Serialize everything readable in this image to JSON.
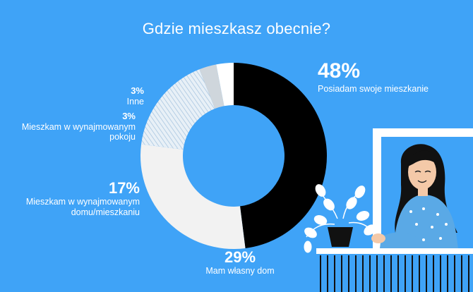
{
  "chart_data": {
    "type": "pie",
    "title": "Gdzie mieszkasz obecnie?",
    "slices": [
      {
        "label": "Posiadam swoje mieszkanie",
        "percent_label": "48%",
        "value": 48,
        "color": "#000000",
        "pattern": "solid"
      },
      {
        "label": "Mam własny dom",
        "percent_label": "29%",
        "value": 29,
        "color": "#f2f2f2",
        "pattern": "solid"
      },
      {
        "label": "Mieszkam w wynajmowanym domu/mieszkaniu",
        "label_line1": "Mieszkam w wynajmowanym",
        "label_line2": "domu/mieszkaniu",
        "percent_label": "17%",
        "value": 17,
        "color": "#e6eef5",
        "pattern": "hatched"
      },
      {
        "label": "Mieszkam w wynajmowanym pokoju",
        "label_line1": "Mieszkam w wynajmowanym",
        "label_line2": "pokoju",
        "percent_label": "3%",
        "value": 3,
        "color": "#cfd6dc",
        "pattern": "solid"
      },
      {
        "label": "Inne",
        "percent_label": "3%",
        "value": 3,
        "color": "#ffffff",
        "pattern": "solid"
      }
    ],
    "legend": "none",
    "grid": false
  },
  "colors": {
    "background": "#3fa3f7",
    "text": "#ffffff"
  },
  "illustration": {
    "subject": "woman-at-window-with-potted-plant"
  }
}
